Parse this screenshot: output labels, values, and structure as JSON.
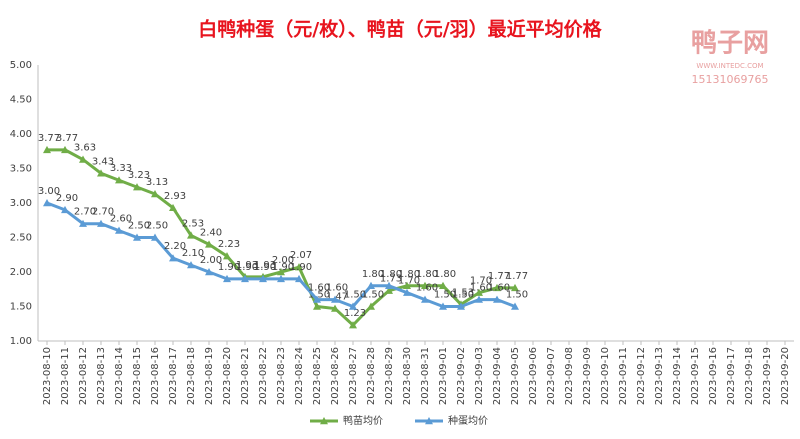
{
  "chart_data": {
    "type": "line",
    "title": "白鸭种蛋（元/枚）、鸭苗（元/羽）最近平均价格",
    "watermark": {
      "name": "鸭子网",
      "site": "WWW.INTEDC.COM",
      "phone": "15131069765"
    },
    "categories": [
      "2023-08-10",
      "2023-08-11",
      "2023-08-12",
      "2023-08-13",
      "2023-08-14",
      "2023-08-15",
      "2023-08-16",
      "2023-08-17",
      "2023-08-18",
      "2023-08-19",
      "2023-08-20",
      "2023-08-21",
      "2023-08-22",
      "2023-08-23",
      "2023-08-24",
      "2023-08-25",
      "2023-08-26",
      "2023-08-27",
      "2023-08-28",
      "2023-08-29",
      "2023-08-30",
      "2023-08-31",
      "2023-09-01",
      "2023-09-02",
      "2023-09-03",
      "2023-09-04",
      "2023-09-05",
      "2023-09-06",
      "2023-09-07",
      "2023-09-08",
      "2023-09-09",
      "2023-09-10",
      "2023-09-11",
      "2023-09-12",
      "2023-09-13",
      "2023-09-14",
      "2023-09-15",
      "2023-09-16",
      "2023-09-17",
      "2023-09-18",
      "2023-09-19",
      "2023-09-20"
    ],
    "series": [
      {
        "name": "鸭苗均价",
        "color": "#70ad47",
        "values": [
          3.77,
          3.77,
          3.63,
          3.43,
          3.33,
          3.23,
          3.13,
          2.93,
          2.53,
          2.4,
          2.23,
          1.93,
          1.93,
          2.0,
          2.07,
          1.5,
          1.47,
          1.23,
          1.5,
          1.73,
          1.8,
          1.8,
          1.8,
          1.53,
          1.7,
          1.77,
          1.77,
          null,
          null,
          null,
          null,
          null,
          null,
          null,
          null,
          null,
          null,
          null,
          null,
          null,
          null,
          null
        ],
        "value_labels": [
          "3.77",
          "3.77",
          "3.63",
          "3.43",
          "3.33",
          "3.23",
          "3.13",
          "2.93",
          "2.53",
          "2.40",
          "2.23",
          "1.93",
          "1.93",
          "2.00",
          "2.07",
          "1.50",
          "1.47",
          "1.23",
          "1.50",
          "1.73",
          "1.80",
          "1.80",
          "1.80",
          "1.53",
          "1.70",
          "1.77",
          "1.77",
          null,
          null,
          null,
          null,
          null,
          null,
          null,
          null,
          null,
          null,
          null,
          null,
          null,
          null,
          null
        ]
      },
      {
        "name": "种蛋均价",
        "color": "#5b9bd5",
        "values": [
          3.0,
          2.9,
          2.7,
          2.7,
          2.6,
          2.5,
          2.5,
          2.2,
          2.1,
          2.0,
          1.9,
          1.9,
          1.9,
          1.9,
          1.9,
          1.6,
          1.6,
          1.5,
          1.8,
          1.8,
          1.7,
          1.6,
          1.5,
          1.5,
          1.6,
          1.6,
          1.5,
          null,
          null,
          null,
          null,
          null,
          null,
          null,
          null,
          null,
          null,
          null,
          null,
          null,
          null,
          null
        ],
        "value_labels": [
          "3.00",
          "2.90",
          "2.70",
          "2.70",
          "2.60",
          "2.50",
          "2.50",
          "2.20",
          "2.10",
          "2.00",
          "1.90",
          "1.90",
          "1.90",
          "1.90",
          "1.90",
          "1.60",
          "1.60",
          "1.50",
          "1.80",
          "1.80",
          "1.70",
          "1.60",
          "1.50",
          "1.50",
          "1.60",
          "1.60",
          "1.50",
          null,
          null,
          null,
          null,
          null,
          null,
          null,
          null,
          null,
          null,
          null,
          null,
          null,
          null,
          null
        ]
      }
    ],
    "ylim": [
      1,
      5
    ],
    "yticks": [
      {
        "value": 1,
        "label": "1.00"
      },
      {
        "value": 1.5,
        "label": "1.50"
      },
      {
        "value": 2,
        "label": "2.00"
      },
      {
        "value": 2.5,
        "label": "2.50"
      },
      {
        "value": 3,
        "label": "3.00"
      },
      {
        "value": 3.5,
        "label": "3.50"
      },
      {
        "value": 4,
        "label": "4.00"
      },
      {
        "value": 4.5,
        "label": "4.50"
      },
      {
        "value": 5,
        "label": "5.00"
      }
    ],
    "grid": false,
    "legend": "bottom"
  }
}
